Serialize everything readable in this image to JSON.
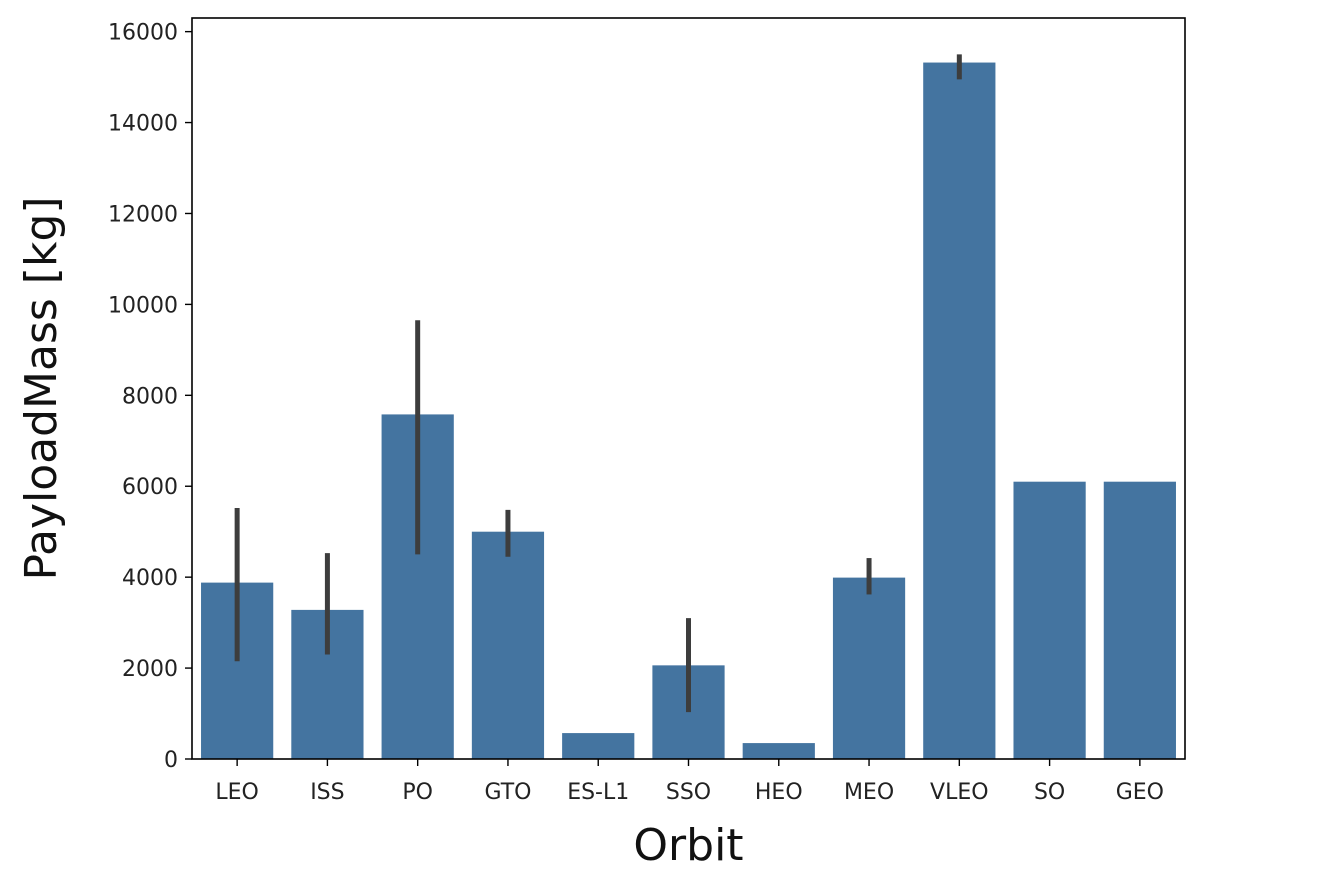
{
  "chart_data": {
    "type": "bar",
    "title": "",
    "xlabel": "Orbit",
    "ylabel": "PayloadMass [kg]",
    "categories": [
      "LEO",
      "ISS",
      "PO",
      "GTO",
      "ES-L1",
      "SSO",
      "HEO",
      "MEO",
      "VLEO",
      "SO",
      "GEO"
    ],
    "values": [
      3880,
      3280,
      7580,
      5000,
      570,
      2060,
      350,
      3990,
      15320,
      6100,
      6100
    ],
    "error_bars": [
      [
        2150,
        5520
      ],
      [
        2300,
        4530
      ],
      [
        4500,
        9650
      ],
      [
        4450,
        5480
      ],
      null,
      [
        1030,
        3100
      ],
      null,
      [
        3620,
        4420
      ],
      [
        14950,
        15500
      ],
      null,
      null
    ],
    "ylim": [
      0,
      16300
    ],
    "yticks": [
      0,
      2000,
      4000,
      6000,
      8000,
      10000,
      12000,
      14000,
      16000
    ],
    "grid": false,
    "legend": "none",
    "colors": {
      "bar": "#4474a0",
      "error_bar": "#3d3d3d",
      "axis": "#000000"
    }
  }
}
